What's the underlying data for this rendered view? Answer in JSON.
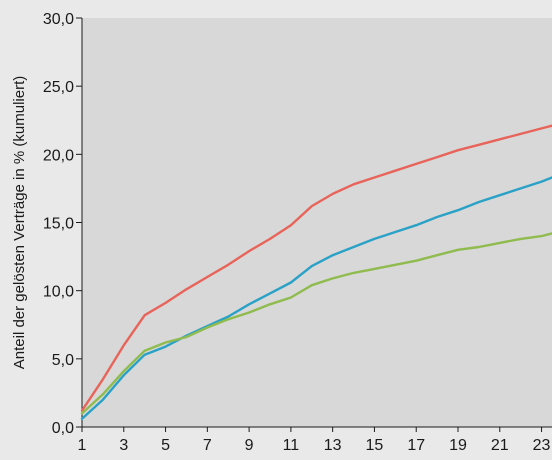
{
  "chart_data": {
    "type": "line",
    "title": "",
    "xlabel": "",
    "ylabel": "Anteil der gelösten Verträge in % (kumuliert)",
    "ylim": [
      0,
      30
    ],
    "xlim": [
      1,
      23.5
    ],
    "grid": false,
    "legend": "none",
    "x_tick_labels": [
      "1",
      "3",
      "5",
      "7",
      "9",
      "11",
      "13",
      "15",
      "17",
      "19",
      "21",
      "23"
    ],
    "y_tick_labels": [
      "0,0",
      "5,0",
      "10,0",
      "15,0",
      "20,0",
      "25,0",
      "30,0"
    ],
    "x": [
      1,
      2,
      3,
      4,
      5,
      6,
      7,
      8,
      9,
      10,
      11,
      12,
      13,
      14,
      15,
      16,
      17,
      18,
      19,
      20,
      21,
      22,
      23,
      23.5
    ],
    "series": [
      {
        "color": "#e8645a",
        "values": [
          1.2,
          3.5,
          6.0,
          8.2,
          9.1,
          10.1,
          11.0,
          11.9,
          12.9,
          13.8,
          14.8,
          16.2,
          17.1,
          17.8,
          18.3,
          18.8,
          19.3,
          19.8,
          20.3,
          20.7,
          21.1,
          21.5,
          21.9,
          22.1
        ]
      },
      {
        "color": "#2aa1c6",
        "values": [
          0.6,
          2.0,
          3.8,
          5.3,
          5.9,
          6.7,
          7.4,
          8.1,
          9.0,
          9.8,
          10.6,
          11.8,
          12.6,
          13.2,
          13.8,
          14.3,
          14.8,
          15.4,
          15.9,
          16.5,
          17.0,
          17.5,
          18.0,
          18.3
        ]
      },
      {
        "color": "#8fbb4f",
        "values": [
          1.0,
          2.4,
          4.1,
          5.6,
          6.2,
          6.6,
          7.3,
          7.9,
          8.4,
          9.0,
          9.5,
          10.4,
          10.9,
          11.3,
          11.6,
          11.9,
          12.2,
          12.6,
          13.0,
          13.2,
          13.5,
          13.8,
          14.0,
          14.2
        ]
      }
    ]
  }
}
